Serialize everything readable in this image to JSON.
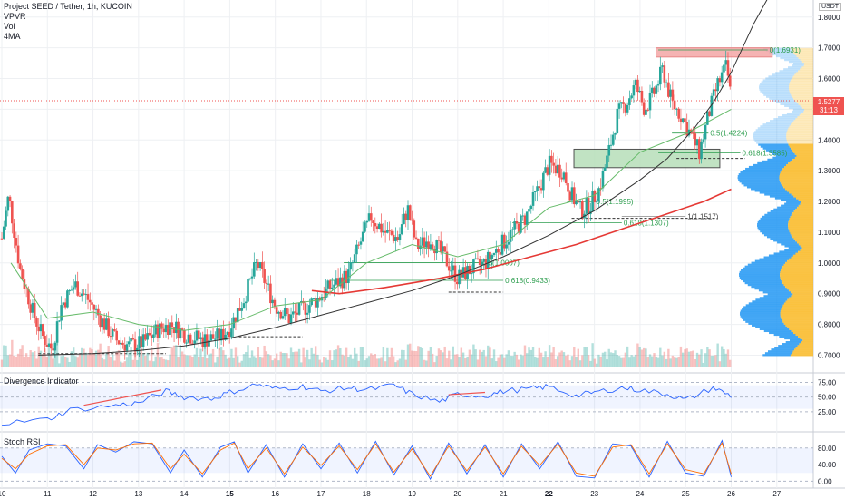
{
  "header": {
    "title": "Project SEED / Tether, 1h, KUCOIN",
    "indicators": [
      "VPVR",
      "Vol",
      "4MA"
    ],
    "currency": "USDT"
  },
  "price": {
    "last": "1.5277",
    "countdown": "31:13"
  },
  "panes": {
    "divergence_title": "Divergence Indicator",
    "stoch_title": "Stoch RSI"
  },
  "colors": {
    "up": "#26a69a",
    "down": "#ef5350",
    "ma_red": "#e53935",
    "ma_dark": "#333333",
    "ma_green": "#66bb6a",
    "fib": "#2e9e4f",
    "rsi": "#2962ff",
    "stoch_k": "#2962ff",
    "stoch_d": "#ff6d00",
    "vp_up": "#2196f3",
    "vp_down": "#f9b823"
  },
  "chart_data": [
    {
      "type": "candlestick",
      "title": "Project SEED / Tether, 1h, KUCOIN",
      "y_ticks": [
        "1.8000",
        "1.7000",
        "1.6000",
        "1.5000",
        "1.4000",
        "1.3000",
        "1.2000",
        "1.1000",
        "1.0000",
        "0.9000",
        "0.8000",
        "0.7000"
      ],
      "ylim": [
        0.66,
        1.82
      ],
      "x_ticks": [
        "10",
        "11",
        "12",
        "13",
        "14",
        "15",
        "16",
        "17",
        "18",
        "19",
        "20",
        "21",
        "22",
        "23",
        "24",
        "25",
        "26",
        "27"
      ],
      "xlim": [
        10,
        27.8
      ],
      "price_path": [
        [
          10,
          1.08
        ],
        [
          10.15,
          1.22
        ],
        [
          10.4,
          0.98
        ],
        [
          10.7,
          0.83
        ],
        [
          10.9,
          0.76
        ],
        [
          11.1,
          0.72
        ],
        [
          11.3,
          0.86
        ],
        [
          11.6,
          0.93
        ],
        [
          11.9,
          0.88
        ],
        [
          12.2,
          0.81
        ],
        [
          12.5,
          0.75
        ],
        [
          12.8,
          0.73
        ],
        [
          13.1,
          0.74
        ],
        [
          13.4,
          0.78
        ],
        [
          13.7,
          0.8
        ],
        [
          14,
          0.77
        ],
        [
          14.4,
          0.75
        ],
        [
          14.8,
          0.76
        ],
        [
          15.0,
          0.79
        ],
        [
          15.3,
          0.88
        ],
        [
          15.6,
          1.0
        ],
        [
          15.8,
          0.93
        ],
        [
          16.0,
          0.86
        ],
        [
          16.3,
          0.82
        ],
        [
          16.6,
          0.85
        ],
        [
          16.9,
          0.88
        ],
        [
          17.2,
          0.92
        ],
        [
          17.6,
          0.96
        ],
        [
          17.9,
          1.08
        ],
        [
          18.1,
          1.15
        ],
        [
          18.4,
          1.1
        ],
        [
          18.7,
          1.08
        ],
        [
          18.9,
          1.18
        ],
        [
          19.1,
          1.05
        ],
        [
          19.4,
          1.08
        ],
        [
          19.7,
          1.02
        ],
        [
          20.0,
          0.95
        ],
        [
          20.3,
          0.98
        ],
        [
          20.6,
          1.0
        ],
        [
          20.9,
          1.05
        ],
        [
          21.2,
          1.1
        ],
        [
          21.5,
          1.15
        ],
        [
          21.8,
          1.25
        ],
        [
          22.0,
          1.32
        ],
        [
          22.3,
          1.3
        ],
        [
          22.5,
          1.22
        ],
        [
          22.7,
          1.17
        ],
        [
          22.9,
          1.19
        ],
        [
          23.1,
          1.24
        ],
        [
          23.3,
          1.35
        ],
        [
          23.5,
          1.48
        ],
        [
          23.7,
          1.52
        ],
        [
          23.9,
          1.58
        ],
        [
          24.1,
          1.5
        ],
        [
          24.3,
          1.55
        ],
        [
          24.5,
          1.63
        ],
        [
          24.7,
          1.52
        ],
        [
          24.9,
          1.48
        ],
        [
          25.1,
          1.42
        ],
        [
          25.3,
          1.36
        ],
        [
          25.5,
          1.48
        ],
        [
          25.7,
          1.58
        ],
        [
          25.9,
          1.64
        ],
        [
          26.0,
          1.53
        ]
      ],
      "moving_averages": [
        {
          "color": "#e53935",
          "values": [
            [
              16.8,
              0.91
            ],
            [
              17.4,
              0.9
            ],
            [
              18.4,
              0.92
            ],
            [
              19.6,
              0.95
            ],
            [
              20.6,
              0.98
            ],
            [
              21.6,
              1.02
            ],
            [
              22.6,
              1.06
            ],
            [
              23.6,
              1.11
            ],
            [
              24.6,
              1.16
            ],
            [
              25.4,
              1.2
            ],
            [
              26.0,
              1.24
            ]
          ]
        },
        {
          "color": "#333333",
          "values": [
            [
              10.8,
              0.7
            ],
            [
              12,
              0.705
            ],
            [
              13,
              0.715
            ],
            [
              14,
              0.73
            ],
            [
              15,
              0.755
            ],
            [
              16,
              0.79
            ],
            [
              17,
              0.83
            ],
            [
              18,
              0.87
            ],
            [
              19,
              0.91
            ],
            [
              20,
              0.96
            ],
            [
              21,
              1.02
            ],
            [
              22,
              1.09
            ],
            [
              23,
              1.17
            ],
            [
              24,
              1.27
            ],
            [
              24.6,
              1.34
            ],
            [
              25.2,
              1.44
            ],
            [
              25.6,
              1.52
            ],
            [
              26.0,
              1.62
            ],
            [
              26.5,
              1.78
            ],
            [
              26.8,
              1.86
            ]
          ]
        },
        {
          "color": "#66bb6a",
          "values": [
            [
              10.2,
              1.0
            ],
            [
              11,
              0.82
            ],
            [
              12,
              0.84
            ],
            [
              13,
              0.8
            ],
            [
              14,
              0.78
            ],
            [
              15,
              0.8
            ],
            [
              16,
              0.86
            ],
            [
              17,
              0.88
            ],
            [
              18,
              1.0
            ],
            [
              19,
              1.06
            ],
            [
              20,
              1.02
            ],
            [
              21,
              1.06
            ],
            [
              22,
              1.18
            ],
            [
              23,
              1.22
            ],
            [
              24,
              1.36
            ],
            [
              25,
              1.42
            ],
            [
              26,
              1.5
            ]
          ]
        }
      ],
      "fib_levels": [
        {
          "label": "0(1.6931)",
          "value": 1.6931
        },
        {
          "label": "0.5(1.4224)",
          "value": 1.4224
        },
        {
          "label": "0.618(1.3585)",
          "value": 1.3585
        },
        {
          "label": "0.5(1.1995)",
          "value": 1.1995
        },
        {
          "label": "0.618(1.1307)",
          "value": 1.1307
        },
        {
          "label": "1(1.1517)",
          "value": 1.1517
        },
        {
          "label": "0.5(1.0007)",
          "value": 1.0007
        },
        {
          "label": "0.618(0.9433)",
          "value": 0.9433
        }
      ],
      "zones": [
        {
          "color": "#f4a6a6",
          "from": 1.67,
          "to": 1.7
        },
        {
          "color": "#b7dfb9",
          "from": 1.31,
          "to": 1.37
        }
      ]
    },
    {
      "type": "line",
      "title": "Divergence Indicator",
      "y_ticks": [
        "75.00",
        "50.00",
        "25.00"
      ],
      "ylim": [
        0,
        85
      ],
      "band": [
        30,
        70
      ],
      "rsi_path": [
        [
          10,
          5
        ],
        [
          11,
          12
        ],
        [
          11.5,
          28
        ],
        [
          12.5,
          36
        ],
        [
          13,
          40
        ],
        [
          13.6,
          60
        ],
        [
          14,
          50
        ],
        [
          14.6,
          47
        ],
        [
          15,
          58
        ],
        [
          15.6,
          72
        ],
        [
          16,
          64
        ],
        [
          16.6,
          68
        ],
        [
          17,
          60
        ],
        [
          17.6,
          66
        ],
        [
          18,
          62
        ],
        [
          18.6,
          70
        ],
        [
          19,
          55
        ],
        [
          19.6,
          42
        ],
        [
          20,
          55
        ],
        [
          20.6,
          52
        ],
        [
          21,
          60
        ],
        [
          21.6,
          64
        ],
        [
          22,
          68
        ],
        [
          22.6,
          52
        ],
        [
          23,
          58
        ],
        [
          23.6,
          66
        ],
        [
          24,
          62
        ],
        [
          24.6,
          55
        ],
        [
          25,
          45
        ],
        [
          25.6,
          66
        ],
        [
          26,
          52
        ]
      ]
    },
    {
      "type": "line",
      "title": "Stoch RSI",
      "y_ticks": [
        "80.00",
        "40.00",
        "0.00"
      ],
      "ylim": [
        -10,
        110
      ],
      "band": [
        20,
        80
      ],
      "series": [
        {
          "values": [
            [
              10,
              60
            ],
            [
              10.3,
              20
            ],
            [
              10.6,
              75
            ],
            [
              11,
              90
            ],
            [
              11.4,
              85
            ],
            [
              11.8,
              30
            ],
            [
              12.1,
              88
            ],
            [
              12.5,
              70
            ],
            [
              12.9,
              95
            ],
            [
              13.3,
              90
            ],
            [
              13.7,
              20
            ],
            [
              14,
              75
            ],
            [
              14.4,
              10
            ],
            [
              14.8,
              82
            ],
            [
              15.1,
              95
            ],
            [
              15.4,
              20
            ],
            [
              15.8,
              88
            ],
            [
              16.2,
              10
            ],
            [
              16.6,
              90
            ],
            [
              17.0,
              30
            ],
            [
              17.4,
              92
            ],
            [
              17.8,
              20
            ],
            [
              18.2,
              96
            ],
            [
              18.6,
              15
            ],
            [
              19.0,
              85
            ],
            [
              19.4,
              5
            ],
            [
              19.8,
              92
            ],
            [
              20.2,
              18
            ],
            [
              20.6,
              88
            ],
            [
              21.0,
              10
            ],
            [
              21.4,
              90
            ],
            [
              21.8,
              30
            ],
            [
              22.2,
              95
            ],
            [
              22.6,
              12
            ],
            [
              23.0,
              8
            ],
            [
              23.4,
              90
            ],
            [
              23.8,
              85
            ],
            [
              24.2,
              10
            ],
            [
              24.6,
              96
            ],
            [
              25.0,
              20
            ],
            [
              25.4,
              12
            ],
            [
              25.8,
              98
            ],
            [
              26.0,
              10
            ]
          ]
        },
        {
          "values": [
            [
              10,
              55
            ],
            [
              10.3,
              30
            ],
            [
              10.6,
              65
            ],
            [
              11,
              85
            ],
            [
              11.4,
              88
            ],
            [
              11.8,
              40
            ],
            [
              12.1,
              80
            ],
            [
              12.5,
              75
            ],
            [
              12.9,
              90
            ],
            [
              13.3,
              92
            ],
            [
              13.7,
              30
            ],
            [
              14,
              65
            ],
            [
              14.4,
              18
            ],
            [
              14.8,
              75
            ],
            [
              15.1,
              92
            ],
            [
              15.4,
              30
            ],
            [
              15.8,
              80
            ],
            [
              16.2,
              18
            ],
            [
              16.6,
              82
            ],
            [
              17.0,
              38
            ],
            [
              17.4,
              85
            ],
            [
              17.8,
              28
            ],
            [
              18.2,
              90
            ],
            [
              18.6,
              22
            ],
            [
              19.0,
              78
            ],
            [
              19.4,
              12
            ],
            [
              19.8,
              85
            ],
            [
              20.2,
              25
            ],
            [
              20.6,
              82
            ],
            [
              21.0,
              18
            ],
            [
              21.4,
              84
            ],
            [
              21.8,
              38
            ],
            [
              22.2,
              90
            ],
            [
              22.6,
              20
            ],
            [
              23.0,
              12
            ],
            [
              23.4,
              82
            ],
            [
              23.8,
              88
            ],
            [
              24.2,
              18
            ],
            [
              24.6,
              90
            ],
            [
              25.0,
              28
            ],
            [
              25.4,
              18
            ],
            [
              25.8,
              92
            ],
            [
              26.0,
              18
            ]
          ]
        }
      ]
    }
  ]
}
